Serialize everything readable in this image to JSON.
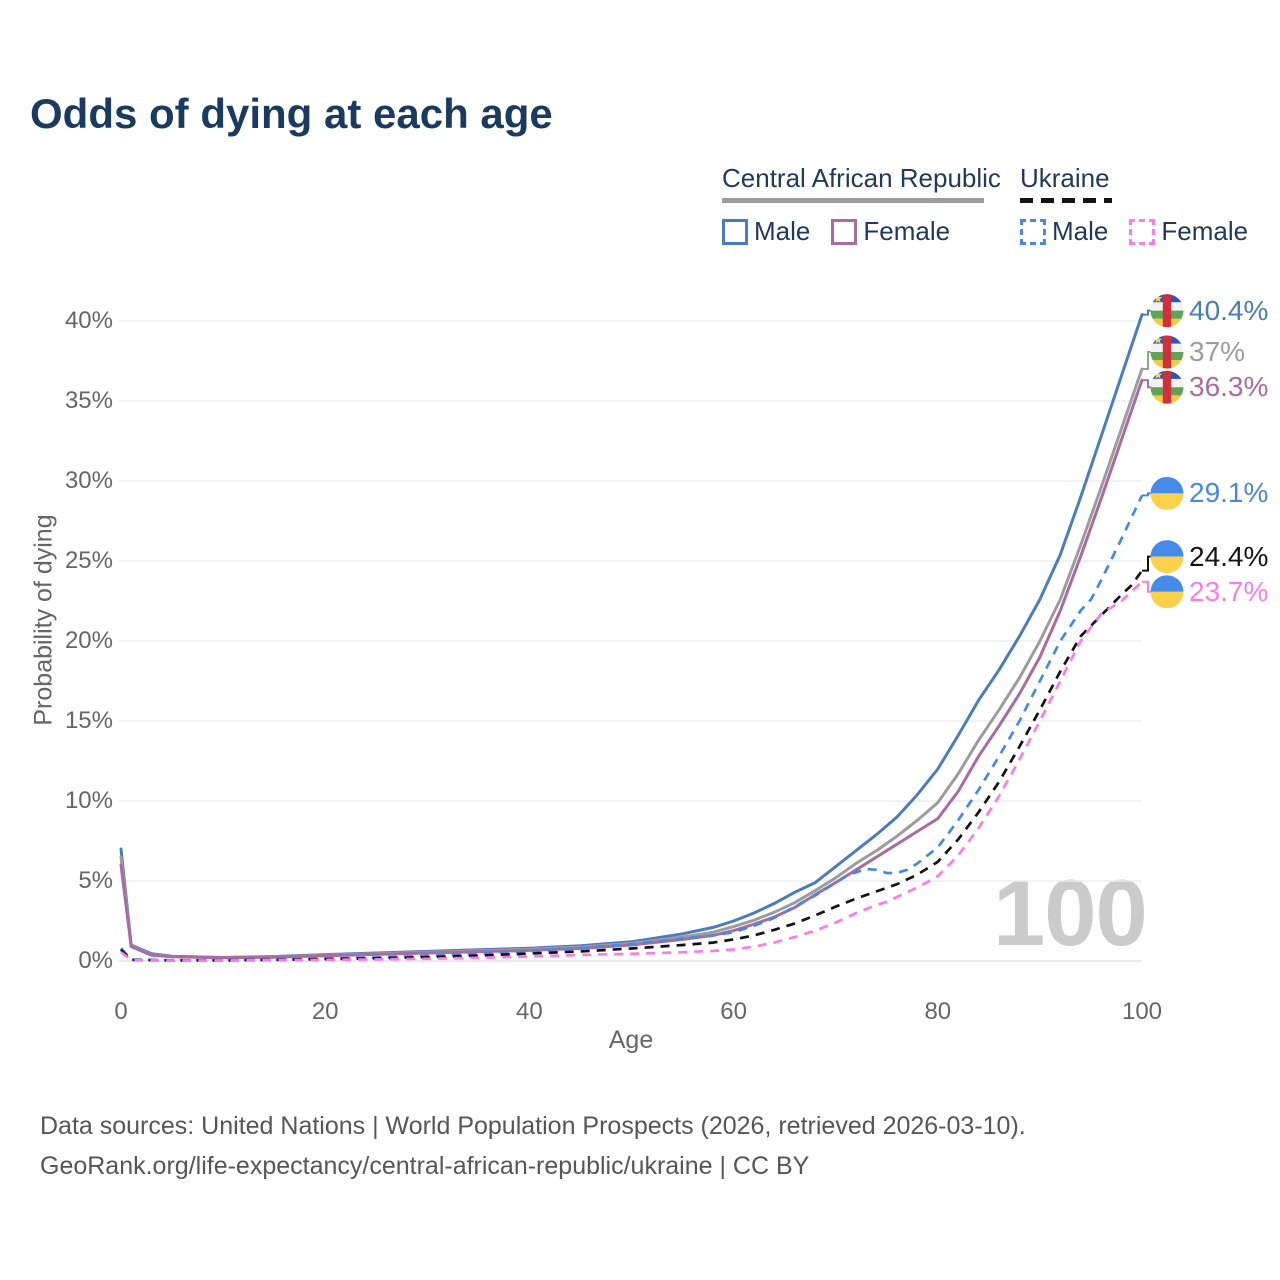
{
  "title": "Odds of dying at each age",
  "watermark": "100",
  "legend": {
    "groups": [
      {
        "label": "Central African Republic",
        "line_style": "solid",
        "line_color": "#9c9c9c",
        "items": [
          {
            "label": "Male",
            "color": "#4a7cbf",
            "dash": false
          },
          {
            "label": "Female",
            "color": "#a96ba0",
            "dash": false
          }
        ]
      },
      {
        "label": "Ukraine",
        "line_style": "dashed",
        "line_color": "#141414",
        "items": [
          {
            "label": "Male",
            "color": "#4787e8",
            "dash": true
          },
          {
            "label": "Female",
            "color": "#fb7ce9",
            "dash": true
          }
        ]
      }
    ]
  },
  "axes": {
    "x": {
      "label": "Age",
      "ticks": [
        0,
        20,
        40,
        60,
        80,
        100
      ],
      "min": 0,
      "max": 100
    },
    "y": {
      "label": "Probability of dying",
      "tick_labels": [
        "0%",
        "5%",
        "10%",
        "15%",
        "20%",
        "25%",
        "30%",
        "35%",
        "40%"
      ],
      "tick_values": [
        0,
        5,
        10,
        15,
        20,
        25,
        30,
        35,
        40
      ],
      "min": 0,
      "max": 40
    }
  },
  "footer": {
    "line1": "Data sources: United Nations | World Population Prospects (2026, retrieved 2026-03-10).",
    "line2": "GeoRank.org/life-expectancy/central-african-republic/ukraine | CC BY"
  },
  "chart_data": {
    "type": "line",
    "title": "Odds of dying at each age",
    "xlabel": "Age",
    "ylabel": "Probability of dying",
    "xlim": [
      0,
      100
    ],
    "ylim": [
      0,
      40
    ],
    "grid": "horizontal",
    "legend_position": "top-right",
    "hover_age": 100,
    "series": [
      {
        "id": "car-male",
        "name": "Central African Republic — Male",
        "country": "Central African Republic",
        "sex": "male",
        "flag": "cf",
        "style": "solid",
        "color": "#4a7cbf",
        "end_label": "40.4%",
        "end_value": 40.4,
        "points": [
          [
            0,
            7.0
          ],
          [
            1,
            1.0
          ],
          [
            3,
            0.45
          ],
          [
            5,
            0.3
          ],
          [
            10,
            0.22
          ],
          [
            15,
            0.28
          ],
          [
            20,
            0.4
          ],
          [
            25,
            0.5
          ],
          [
            30,
            0.6
          ],
          [
            35,
            0.7
          ],
          [
            40,
            0.8
          ],
          [
            45,
            0.95
          ],
          [
            50,
            1.2
          ],
          [
            55,
            1.7
          ],
          [
            58,
            2.1
          ],
          [
            60,
            2.5
          ],
          [
            62,
            3.0
          ],
          [
            64,
            3.6
          ],
          [
            66,
            4.3
          ],
          [
            68,
            4.9
          ],
          [
            69,
            5.4
          ],
          [
            70,
            5.9
          ],
          [
            72,
            6.9
          ],
          [
            74,
            7.9
          ],
          [
            76,
            9.0
          ],
          [
            78,
            10.4
          ],
          [
            80,
            12.0
          ],
          [
            82,
            14.1
          ],
          [
            84,
            16.3
          ],
          [
            86,
            18.2
          ],
          [
            88,
            20.3
          ],
          [
            90,
            22.6
          ],
          [
            92,
            25.4
          ],
          [
            94,
            29.0
          ],
          [
            96,
            32.8
          ],
          [
            98,
            36.6
          ],
          [
            100,
            40.4
          ]
        ]
      },
      {
        "id": "car-both",
        "name": "Central African Republic — Both sexes",
        "country": "Central African Republic",
        "sex": "both",
        "flag": "cf",
        "style": "solid",
        "color": "#9c9c9c",
        "end_label": "37%",
        "end_value": 37.0,
        "points": [
          [
            0,
            6.5
          ],
          [
            1,
            0.95
          ],
          [
            3,
            0.4
          ],
          [
            5,
            0.28
          ],
          [
            10,
            0.21
          ],
          [
            15,
            0.26
          ],
          [
            20,
            0.36
          ],
          [
            25,
            0.45
          ],
          [
            30,
            0.55
          ],
          [
            35,
            0.64
          ],
          [
            40,
            0.73
          ],
          [
            45,
            0.87
          ],
          [
            50,
            1.1
          ],
          [
            55,
            1.5
          ],
          [
            58,
            1.8
          ],
          [
            60,
            2.15
          ],
          [
            62,
            2.55
          ],
          [
            64,
            3.05
          ],
          [
            66,
            3.65
          ],
          [
            68,
            4.4
          ],
          [
            70,
            5.2
          ],
          [
            72,
            6.1
          ],
          [
            74,
            6.9
          ],
          [
            76,
            7.8
          ],
          [
            78,
            8.8
          ],
          [
            80,
            9.9
          ],
          [
            82,
            11.7
          ],
          [
            84,
            13.8
          ],
          [
            86,
            15.7
          ],
          [
            88,
            17.7
          ],
          [
            90,
            20.0
          ],
          [
            92,
            22.6
          ],
          [
            94,
            26.0
          ],
          [
            96,
            29.6
          ],
          [
            98,
            33.3
          ],
          [
            100,
            37.0
          ]
        ]
      },
      {
        "id": "car-female",
        "name": "Central African Republic — Female",
        "country": "Central African Republic",
        "sex": "female",
        "flag": "cf",
        "style": "solid",
        "color": "#a96ba0",
        "end_label": "36.3%",
        "end_value": 36.3,
        "points": [
          [
            0,
            6.0
          ],
          [
            1,
            0.9
          ],
          [
            3,
            0.36
          ],
          [
            5,
            0.26
          ],
          [
            10,
            0.2
          ],
          [
            15,
            0.24
          ],
          [
            20,
            0.33
          ],
          [
            25,
            0.41
          ],
          [
            30,
            0.5
          ],
          [
            35,
            0.58
          ],
          [
            40,
            0.66
          ],
          [
            45,
            0.79
          ],
          [
            50,
            1.0
          ],
          [
            55,
            1.35
          ],
          [
            58,
            1.6
          ],
          [
            60,
            1.9
          ],
          [
            62,
            2.3
          ],
          [
            64,
            2.75
          ],
          [
            66,
            3.35
          ],
          [
            68,
            4.15
          ],
          [
            70,
            4.9
          ],
          [
            72,
            5.7
          ],
          [
            74,
            6.5
          ],
          [
            76,
            7.3
          ],
          [
            78,
            8.1
          ],
          [
            80,
            8.9
          ],
          [
            82,
            10.6
          ],
          [
            84,
            12.8
          ],
          [
            86,
            14.7
          ],
          [
            88,
            16.7
          ],
          [
            90,
            19.0
          ],
          [
            92,
            21.9
          ],
          [
            94,
            25.3
          ],
          [
            96,
            28.9
          ],
          [
            98,
            32.6
          ],
          [
            100,
            36.3
          ]
        ]
      },
      {
        "id": "ukr-male",
        "name": "Ukraine — Male",
        "country": "Ukraine",
        "sex": "male",
        "flag": "ua",
        "style": "dashed",
        "color": "#4787e8",
        "end_label": "29.1%",
        "end_value": 29.1,
        "points": [
          [
            0,
            0.8
          ],
          [
            1,
            0.08
          ],
          [
            5,
            0.05
          ],
          [
            10,
            0.05
          ],
          [
            15,
            0.08
          ],
          [
            20,
            0.15
          ],
          [
            25,
            0.22
          ],
          [
            30,
            0.32
          ],
          [
            35,
            0.45
          ],
          [
            40,
            0.6
          ],
          [
            45,
            0.8
          ],
          [
            50,
            1.05
          ],
          [
            55,
            1.4
          ],
          [
            58,
            1.6
          ],
          [
            60,
            1.8
          ],
          [
            62,
            2.2
          ],
          [
            64,
            2.7
          ],
          [
            66,
            3.4
          ],
          [
            68,
            4.1
          ],
          [
            70,
            4.9
          ],
          [
            71,
            5.3
          ],
          [
            72,
            5.55
          ],
          [
            73,
            5.75
          ],
          [
            74,
            5.7
          ],
          [
            75,
            5.5
          ],
          [
            76,
            5.5
          ],
          [
            77,
            5.7
          ],
          [
            78,
            6.1
          ],
          [
            80,
            7.1
          ],
          [
            82,
            8.8
          ],
          [
            84,
            10.7
          ],
          [
            86,
            12.8
          ],
          [
            88,
            15.0
          ],
          [
            90,
            17.5
          ],
          [
            92,
            20.0
          ],
          [
            94,
            21.9
          ],
          [
            95,
            22.6
          ],
          [
            96,
            23.8
          ],
          [
            98,
            26.4
          ],
          [
            100,
            29.1
          ]
        ]
      },
      {
        "id": "ukr-both",
        "name": "Ukraine — Both sexes",
        "country": "Ukraine",
        "sex": "both",
        "flag": "ua",
        "style": "dashed",
        "color": "#141414",
        "end_label": "24.4%",
        "end_value": 24.4,
        "points": [
          [
            0,
            0.7
          ],
          [
            1,
            0.07
          ],
          [
            5,
            0.04
          ],
          [
            10,
            0.04
          ],
          [
            15,
            0.07
          ],
          [
            20,
            0.12
          ],
          [
            25,
            0.17
          ],
          [
            30,
            0.24
          ],
          [
            35,
            0.34
          ],
          [
            40,
            0.46
          ],
          [
            45,
            0.6
          ],
          [
            50,
            0.78
          ],
          [
            55,
            1.0
          ],
          [
            58,
            1.15
          ],
          [
            60,
            1.35
          ],
          [
            62,
            1.6
          ],
          [
            64,
            1.95
          ],
          [
            66,
            2.35
          ],
          [
            68,
            2.85
          ],
          [
            70,
            3.4
          ],
          [
            72,
            3.9
          ],
          [
            74,
            4.35
          ],
          [
            76,
            4.8
          ],
          [
            78,
            5.4
          ],
          [
            80,
            6.2
          ],
          [
            82,
            7.6
          ],
          [
            84,
            9.3
          ],
          [
            86,
            11.2
          ],
          [
            88,
            13.4
          ],
          [
            90,
            15.7
          ],
          [
            92,
            18.1
          ],
          [
            94,
            20.3
          ],
          [
            96,
            21.6
          ],
          [
            98,
            22.9
          ],
          [
            99,
            23.5
          ],
          [
            100,
            24.4
          ]
        ]
      },
      {
        "id": "ukr-female",
        "name": "Ukraine — Female",
        "country": "Ukraine",
        "sex": "female",
        "flag": "ua",
        "style": "dashed",
        "color": "#fb7ce9",
        "end_label": "23.7%",
        "end_value": 23.7,
        "points": [
          [
            0,
            0.55
          ],
          [
            1,
            0.05
          ],
          [
            5,
            0.03
          ],
          [
            10,
            0.03
          ],
          [
            15,
            0.05
          ],
          [
            20,
            0.07
          ],
          [
            25,
            0.1
          ],
          [
            30,
            0.14
          ],
          [
            35,
            0.2
          ],
          [
            40,
            0.28
          ],
          [
            45,
            0.38
          ],
          [
            50,
            0.45
          ],
          [
            55,
            0.55
          ],
          [
            58,
            0.63
          ],
          [
            60,
            0.72
          ],
          [
            62,
            0.9
          ],
          [
            64,
            1.15
          ],
          [
            66,
            1.5
          ],
          [
            68,
            1.9
          ],
          [
            70,
            2.4
          ],
          [
            72,
            3.0
          ],
          [
            74,
            3.5
          ],
          [
            75,
            3.7
          ],
          [
            76,
            4.0
          ],
          [
            78,
            4.6
          ],
          [
            80,
            5.3
          ],
          [
            82,
            6.6
          ],
          [
            84,
            8.3
          ],
          [
            86,
            10.3
          ],
          [
            88,
            12.6
          ],
          [
            90,
            15.0
          ],
          [
            92,
            17.5
          ],
          [
            94,
            20.0
          ],
          [
            96,
            21.7
          ],
          [
            98,
            22.5
          ],
          [
            100,
            23.7
          ]
        ]
      }
    ]
  }
}
